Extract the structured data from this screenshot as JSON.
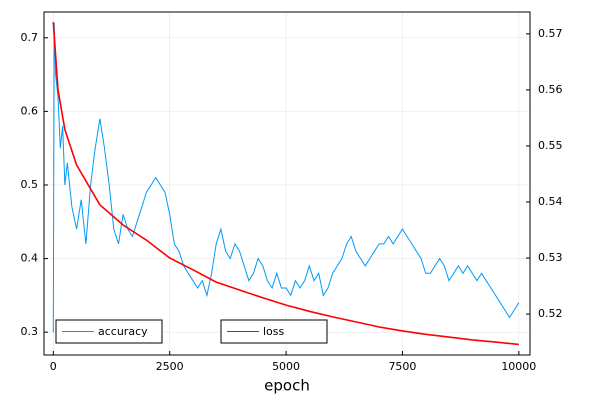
{
  "chart_data": {
    "type": "line",
    "x_label": "epoch",
    "xlim": [
      -200,
      10240
    ],
    "xticks": [
      0,
      2500,
      5000,
      7500,
      10000
    ],
    "ylim": [
      0.269,
      0.735
    ],
    "yticks": [
      0.3,
      0.4,
      0.5,
      0.6,
      0.7
    ],
    "y2lim": [
      0.5127,
      0.5739
    ],
    "y2ticks": [
      0.52,
      0.53,
      0.54,
      0.55,
      0.56,
      0.57
    ],
    "grid": true,
    "series": [
      {
        "name": "accuracy",
        "color": "#009AFA",
        "axis": "y",
        "x": [
          0,
          20,
          50,
          100,
          150,
          200,
          250,
          300,
          400,
          500,
          600,
          700,
          800,
          900,
          1000,
          1100,
          1200,
          1300,
          1400,
          1500,
          1600,
          1700,
          1800,
          1900,
          2000,
          2100,
          2200,
          2300,
          2400,
          2500,
          2600,
          2700,
          2800,
          2900,
          3000,
          3100,
          3200,
          3300,
          3400,
          3500,
          3600,
          3700,
          3800,
          3900,
          4000,
          4100,
          4200,
          4300,
          4400,
          4500,
          4600,
          4700,
          4800,
          4900,
          5000,
          5100,
          5200,
          5300,
          5400,
          5500,
          5600,
          5700,
          5800,
          5900,
          6000,
          6100,
          6200,
          6300,
          6400,
          6500,
          6600,
          6700,
          6800,
          6900,
          7000,
          7100,
          7200,
          7300,
          7400,
          7500,
          7600,
          7700,
          7800,
          7900,
          8000,
          8100,
          8200,
          8300,
          8400,
          8500,
          8600,
          8700,
          8800,
          8900,
          9000,
          9100,
          9200,
          9300,
          9400,
          9500,
          9600,
          9700,
          9800,
          9900,
          10000
        ],
        "values": [
          0.3,
          0.72,
          0.65,
          0.62,
          0.55,
          0.58,
          0.5,
          0.53,
          0.47,
          0.44,
          0.48,
          0.42,
          0.5,
          0.55,
          0.59,
          0.55,
          0.5,
          0.44,
          0.42,
          0.46,
          0.44,
          0.43,
          0.45,
          0.47,
          0.49,
          0.5,
          0.51,
          0.5,
          0.49,
          0.46,
          0.42,
          0.41,
          0.39,
          0.38,
          0.37,
          0.36,
          0.37,
          0.35,
          0.38,
          0.42,
          0.44,
          0.41,
          0.4,
          0.42,
          0.41,
          0.39,
          0.37,
          0.38,
          0.4,
          0.39,
          0.37,
          0.36,
          0.38,
          0.36,
          0.36,
          0.35,
          0.37,
          0.36,
          0.37,
          0.39,
          0.37,
          0.38,
          0.35,
          0.36,
          0.38,
          0.39,
          0.4,
          0.42,
          0.43,
          0.41,
          0.4,
          0.39,
          0.4,
          0.41,
          0.42,
          0.42,
          0.43,
          0.42,
          0.43,
          0.44,
          0.43,
          0.42,
          0.41,
          0.4,
          0.38,
          0.38,
          0.39,
          0.4,
          0.39,
          0.37,
          0.38,
          0.39,
          0.38,
          0.39,
          0.38,
          0.37,
          0.38,
          0.37,
          0.36,
          0.35,
          0.34,
          0.33,
          0.32,
          0.33,
          0.34
        ]
      },
      {
        "name": "loss",
        "color": "#FF0000",
        "axis": "y2",
        "x": [
          0,
          100,
          250,
          500,
          1000,
          1500,
          2000,
          2500,
          3000,
          3500,
          4000,
          4500,
          5000,
          5500,
          6000,
          6500,
          7000,
          7500,
          8000,
          8500,
          9000,
          9500,
          10000
        ],
        "values": [
          0.5721,
          0.56,
          0.5529,
          0.5466,
          0.5395,
          0.5359,
          0.5332,
          0.53,
          0.5279,
          0.5257,
          0.5243,
          0.5229,
          0.5216,
          0.5205,
          0.5195,
          0.5186,
          0.5177,
          0.517,
          0.5164,
          0.5159,
          0.5154,
          0.515,
          0.5146
        ]
      }
    ]
  }
}
